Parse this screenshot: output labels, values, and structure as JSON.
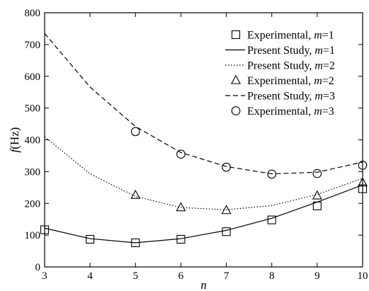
{
  "chart_data": {
    "type": "line",
    "title": "",
    "xlabel": "n",
    "ylabel": "f (Hz)",
    "xlim": [
      3,
      10
    ],
    "ylim": [
      0,
      800
    ],
    "xticks": [
      3,
      4,
      5,
      6,
      7,
      8,
      9,
      10
    ],
    "yticks": [
      0,
      100,
      200,
      300,
      400,
      500,
      600,
      700,
      800
    ],
    "grid": false,
    "legend_position": "top-right",
    "series": [
      {
        "name": "Experimental, m=1",
        "label_prefix": "Experimental, ",
        "label_var": "m",
        "label_suffix": "=1",
        "kind": "marker",
        "marker": "square",
        "x": [
          3,
          4,
          5,
          6,
          7,
          8,
          9,
          10
        ],
        "values": [
          117,
          87,
          76,
          87,
          111,
          148,
          192,
          246
        ]
      },
      {
        "name": "Present Study, m=1",
        "label_prefix": "Present Study, ",
        "label_var": "m",
        "label_suffix": "=1",
        "kind": "line",
        "dash": "solid",
        "x": [
          3,
          4,
          5,
          6,
          7,
          8,
          9,
          10
        ],
        "values": [
          122,
          89,
          76,
          89,
          115,
          153,
          204,
          258
        ]
      },
      {
        "name": "Present Study, m=2",
        "label_prefix": "Present Study, ",
        "label_var": "m",
        "label_suffix": "=2",
        "kind": "line",
        "dash": "dotted",
        "x": [
          3,
          4,
          5,
          6,
          7,
          8,
          9,
          10
        ],
        "values": [
          410,
          293,
          222,
          187,
          180,
          193,
          228,
          279
        ]
      },
      {
        "name": "Experimental, m=2",
        "label_prefix": "Experimental, ",
        "label_var": "m",
        "label_suffix": "=2",
        "kind": "marker",
        "marker": "triangle",
        "x": [
          5,
          6,
          7,
          9,
          10
        ],
        "values": [
          226,
          187,
          178,
          224,
          265
        ]
      },
      {
        "name": "Present Study, m=3",
        "label_prefix": "Present Study, ",
        "label_var": "m",
        "label_suffix": "=3",
        "kind": "line",
        "dash": "dashed",
        "x": [
          3,
          4,
          5,
          6,
          7,
          8,
          9,
          10
        ],
        "values": [
          735,
          566,
          442,
          360,
          316,
          293,
          298,
          330
        ]
      },
      {
        "name": "Experimental, m=3",
        "label_prefix": "Experimental, ",
        "label_var": "m",
        "label_suffix": "=3",
        "kind": "marker",
        "marker": "circle",
        "x": [
          5,
          6,
          7,
          8,
          9,
          10
        ],
        "values": [
          426,
          355,
          314,
          292,
          294,
          320
        ]
      }
    ]
  }
}
